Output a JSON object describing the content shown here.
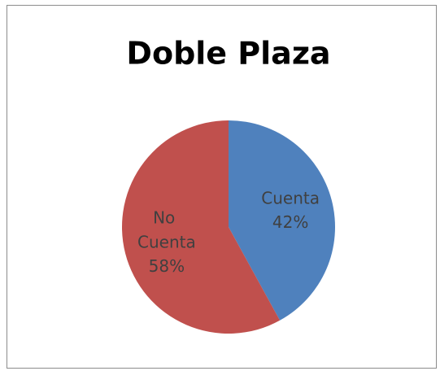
{
  "chart_data": {
    "type": "pie",
    "title": "Doble Plaza",
    "categories": [
      "Cuenta",
      "No Cuenta"
    ],
    "values": [
      42,
      58
    ],
    "value_labels": [
      "42%",
      "58%"
    ],
    "colors": [
      "#4f81bd",
      "#c0504d"
    ]
  }
}
